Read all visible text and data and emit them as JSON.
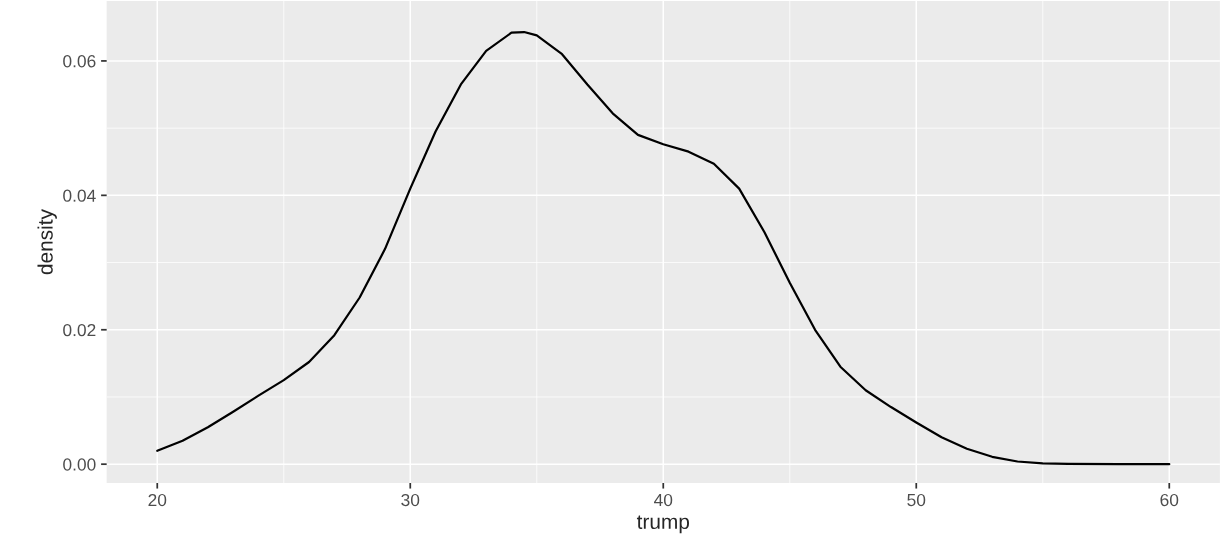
{
  "chart_data": {
    "type": "line",
    "xlabel": "trump",
    "ylabel": "density",
    "x": [
      20,
      21,
      22,
      23,
      24,
      25,
      26,
      27,
      28,
      29,
      30,
      31,
      32,
      33,
      34,
      34.5,
      35,
      36,
      37,
      38,
      39,
      40,
      41,
      42,
      43,
      44,
      45,
      46,
      47,
      48,
      49,
      50,
      51,
      52,
      53,
      54,
      55,
      56,
      58,
      60
    ],
    "series": [
      {
        "color": "#000000",
        "values": [
          0.002,
          0.0035,
          0.0055,
          0.0078,
          0.0102,
          0.0125,
          0.0152,
          0.0192,
          0.0248,
          0.032,
          0.041,
          0.0495,
          0.0565,
          0.0615,
          0.0642,
          0.0643,
          0.0638,
          0.061,
          0.0565,
          0.0522,
          0.049,
          0.0476,
          0.0465,
          0.0447,
          0.041,
          0.0345,
          0.027,
          0.02,
          0.0145,
          0.011,
          0.0085,
          0.0062,
          0.004,
          0.0023,
          0.0011,
          0.0004,
          0.00012,
          3e-05,
          0,
          0
        ]
      }
    ],
    "xlim": [
      18,
      62
    ],
    "ylim": [
      -0.0028,
      0.0689
    ],
    "xticks": [
      20,
      30,
      40,
      50,
      60
    ],
    "yticks": [
      {
        "value": 0,
        "label": "0.00"
      },
      {
        "value": 0.02,
        "label": "0.02"
      },
      {
        "value": 0.04,
        "label": "0.04"
      },
      {
        "value": 0.06,
        "label": "0.06"
      }
    ],
    "grid": true,
    "marker": "none",
    "line_style": "solid"
  }
}
